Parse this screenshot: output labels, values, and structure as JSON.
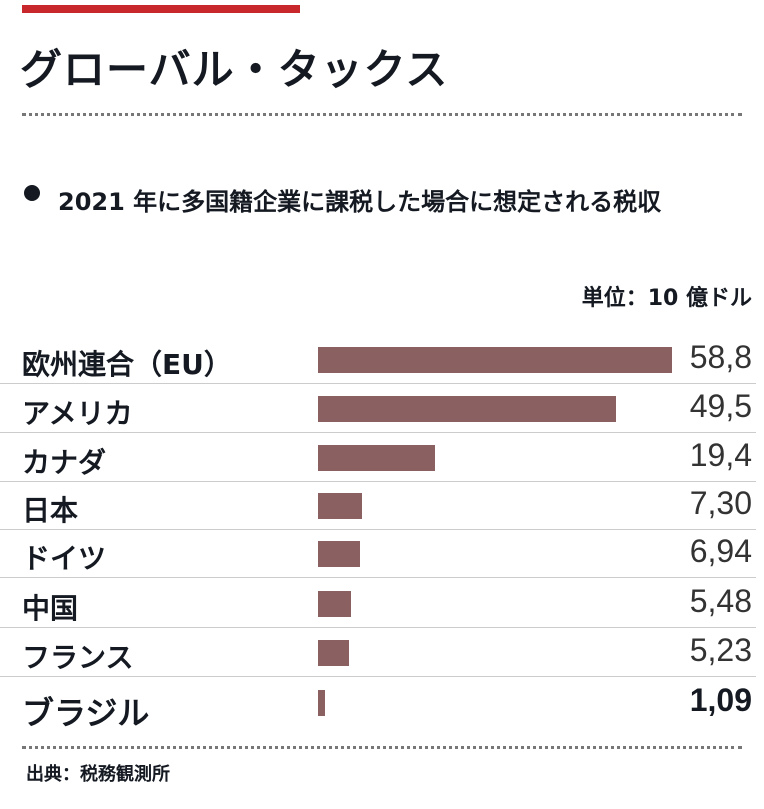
{
  "header": {
    "title": "グローバル・タックス",
    "accent_color": "#c8282c"
  },
  "chart_data": {
    "type": "bar",
    "orientation": "horizontal",
    "title": "2021 年に多国籍企業に課税した場合に想定される税収",
    "unit": "単位：10 億ドル",
    "categories": [
      "欧州連合（EU）",
      "アメリカ",
      "カナダ",
      "日本",
      "ドイツ",
      "中国",
      "フランス",
      "ブラジル"
    ],
    "values": [
      58.8,
      49.5,
      19.4,
      7.3,
      6.94,
      5.48,
      5.23,
      1.09
    ],
    "value_labels": [
      "58,8",
      "49,5",
      "19,4",
      "7,30",
      "6,94",
      "5,48",
      "5,23",
      "1,09"
    ],
    "bar_color": "#8a6060",
    "xlim": [
      0,
      58.8
    ]
  },
  "footer": {
    "source": "出典：税務観測所"
  }
}
